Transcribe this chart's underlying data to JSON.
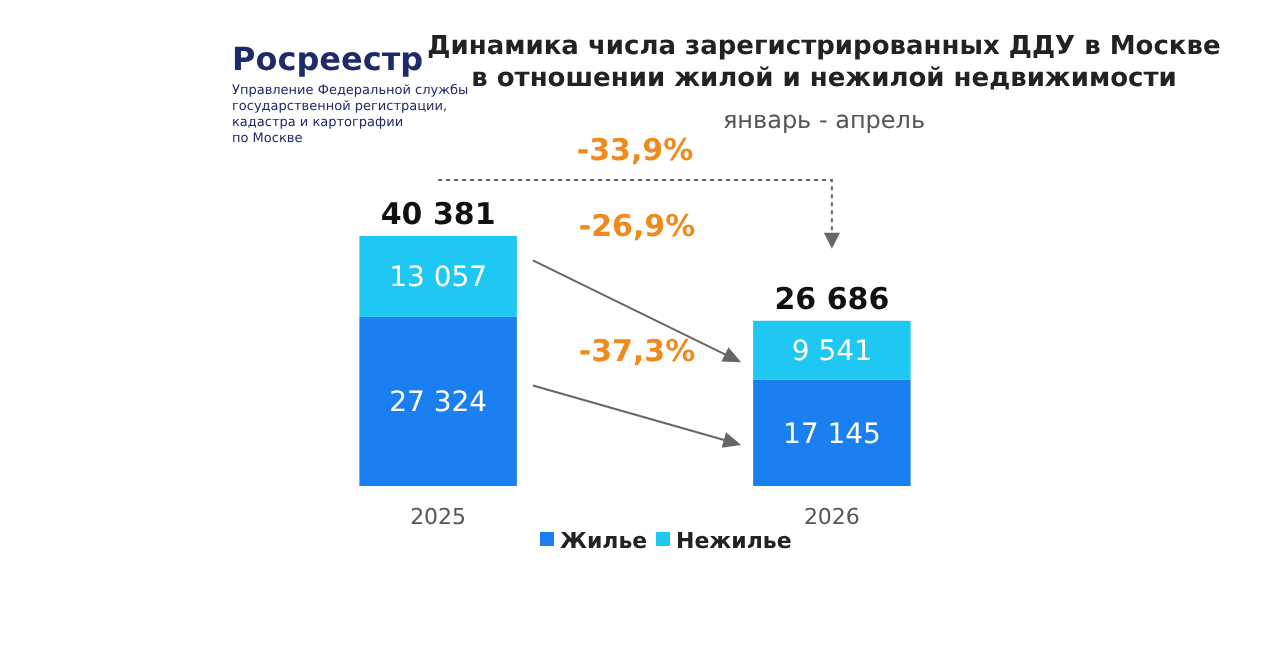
{
  "chart_data": {
    "type": "bar",
    "stacked": true,
    "title": "Динамика числа зарегистрированных ДДУ в Москве\nв отношении жилой и нежилой недвижимости",
    "subtitle": "январь - апрель",
    "categories": [
      "2025",
      "2026"
    ],
    "series": [
      {
        "name": "Жилье",
        "color": "#1a7ff0",
        "values": [
          27324,
          17145
        ],
        "value_labels": [
          "27 324",
          "17 145"
        ]
      },
      {
        "name": "Нежилье",
        "color": "#1ec8f2",
        "values": [
          13057,
          9541
        ],
        "value_labels": [
          "13 057",
          "9 541"
        ]
      }
    ],
    "totals": [
      "40 381",
      "26 686"
    ],
    "legend": "bottom",
    "annotations": [
      "Росреестр",
      "Управление Федеральной службы\nгосударственной регистрации,\nкадастра и картографии\nпо Москве",
      "-33,9%",
      "-26,9%",
      "-37,3%"
    ]
  }
}
